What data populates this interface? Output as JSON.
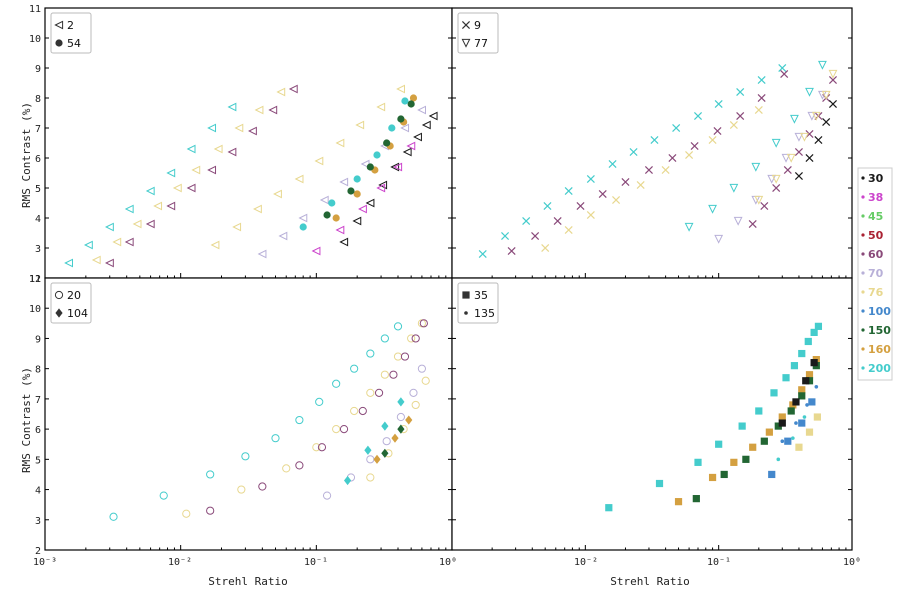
{
  "chart_data": {
    "type": "scatter",
    "xscale": "log",
    "xlim": [
      0.001,
      1
    ],
    "ylim": [
      2,
      11
    ],
    "xlabel": "Strehl Ratio",
    "ylabel": "RMS Contrast (%)",
    "y_tick_labels": [
      "3",
      "4",
      "5",
      "6",
      "7",
      "8",
      "9",
      "10",
      "11",
      "12",
      "2"
    ],
    "x_tick_labels": [
      "10⁻³",
      "10⁻²",
      "10⁻¹",
      "10⁰",
      "10⁻²",
      "10⁻¹",
      "10⁰"
    ],
    "color_legend": [
      {
        "label": "30",
        "color": "#1a1a1a"
      },
      {
        "label": "38",
        "color": "#cc44cc"
      },
      {
        "label": "45",
        "color": "#66cc66"
      },
      {
        "label": "50",
        "color": "#aa2233"
      },
      {
        "label": "60",
        "color": "#8a4a7a"
      },
      {
        "label": "70",
        "color": "#b8b0d8"
      },
      {
        "label": "76",
        "color": "#e8d890"
      },
      {
        "label": "100",
        "color": "#4488cc"
      },
      {
        "label": "150",
        "color": "#226633"
      },
      {
        "label": "160",
        "color": "#d4a040"
      },
      {
        "label": "200",
        "color": "#44cccc"
      }
    ],
    "panels": [
      {
        "id": "top-left",
        "legend": [
          {
            "marker": "tri-left",
            "label": "2"
          },
          {
            "marker": "filled-circle",
            "label": "54"
          }
        ],
        "series": [
          {
            "color": "#44cccc",
            "marker": "tri-left",
            "x": [
              0.0015,
              0.0021,
              0.003,
              0.0042,
              0.006,
              0.0085,
              0.012,
              0.017,
              0.024
            ],
            "y": [
              2.5,
              3.1,
              3.7,
              4.3,
              4.9,
              5.5,
              6.3,
              7.0,
              7.7
            ]
          },
          {
            "color": "#e8d890",
            "marker": "tri-left",
            "x": [
              0.0024,
              0.0034,
              0.0048,
              0.0068,
              0.0095,
              0.013,
              0.019,
              0.027,
              0.038,
              0.055
            ],
            "y": [
              2.6,
              3.2,
              3.8,
              4.4,
              5.0,
              5.6,
              6.3,
              7.0,
              7.6,
              8.2
            ]
          },
          {
            "color": "#8a4a7a",
            "marker": "tri-left",
            "x": [
              0.003,
              0.0042,
              0.006,
              0.0085,
              0.012,
              0.017,
              0.024,
              0.034,
              0.048,
              0.068
            ],
            "y": [
              2.5,
              3.2,
              3.8,
              4.4,
              5.0,
              5.6,
              6.2,
              6.9,
              7.6,
              8.3
            ]
          },
          {
            "color": "#e8d890",
            "marker": "tri-left",
            "x": [
              0.018,
              0.026,
              0.037,
              0.052,
              0.075,
              0.105,
              0.15,
              0.21,
              0.3,
              0.42
            ],
            "y": [
              3.1,
              3.7,
              4.3,
              4.8,
              5.3,
              5.9,
              6.5,
              7.1,
              7.7,
              8.3
            ]
          },
          {
            "color": "#b8b0d8",
            "marker": "tri-left",
            "x": [
              0.04,
              0.057,
              0.08,
              0.115,
              0.16,
              0.23,
              0.32,
              0.45,
              0.6
            ],
            "y": [
              2.8,
              3.4,
              4.0,
              4.6,
              5.2,
              5.8,
              6.4,
              7.0,
              7.6
            ]
          },
          {
            "color": "#1a1a1a",
            "marker": "tri-left",
            "x": [
              0.16,
              0.2,
              0.25,
              0.31,
              0.38,
              0.47,
              0.56,
              0.65,
              0.73
            ],
            "y": [
              3.2,
              3.9,
              4.5,
              5.1,
              5.7,
              6.2,
              6.7,
              7.1,
              7.4
            ]
          },
          {
            "color": "#44cccc",
            "marker": "filled-circle",
            "x": [
              0.08,
              0.13,
              0.2,
              0.28,
              0.36,
              0.45
            ],
            "y": [
              3.7,
              4.5,
              5.3,
              6.1,
              7.0,
              7.9
            ]
          },
          {
            "color": "#d4a040",
            "marker": "filled-circle",
            "x": [
              0.14,
              0.2,
              0.27,
              0.35,
              0.44,
              0.52
            ],
            "y": [
              4.0,
              4.8,
              5.6,
              6.4,
              7.2,
              8.0
            ]
          },
          {
            "color": "#226633",
            "marker": "filled-circle",
            "x": [
              0.12,
              0.18,
              0.25,
              0.33,
              0.42,
              0.5
            ],
            "y": [
              4.1,
              4.9,
              5.7,
              6.5,
              7.3,
              7.8
            ]
          },
          {
            "color": "#cc44cc",
            "marker": "tri-left",
            "x": [
              0.1,
              0.15,
              0.22,
              0.3,
              0.4,
              0.5
            ],
            "y": [
              2.9,
              3.6,
              4.3,
              5.0,
              5.7,
              6.4
            ]
          }
        ]
      },
      {
        "id": "top-right",
        "legend": [
          {
            "marker": "x",
            "label": "9"
          },
          {
            "marker": "tri-down",
            "label": "77"
          }
        ],
        "series": [
          {
            "color": "#44cccc",
            "marker": "x",
            "x": [
              0.0017,
              0.0025,
              0.0036,
              0.0052,
              0.0075,
              0.011,
              0.016,
              0.023,
              0.033,
              0.048,
              0.07,
              0.1,
              0.145,
              0.21,
              0.3
            ],
            "y": [
              2.8,
              3.4,
              3.9,
              4.4,
              4.9,
              5.3,
              5.8,
              6.2,
              6.6,
              7.0,
              7.4,
              7.8,
              8.2,
              8.6,
              9.0
            ]
          },
          {
            "color": "#8a4a7a",
            "marker": "x",
            "x": [
              0.0028,
              0.0042,
              0.0062,
              0.0092,
              0.0135,
              0.02,
              0.03,
              0.045,
              0.066,
              0.098,
              0.145,
              0.21,
              0.31
            ],
            "y": [
              2.9,
              3.4,
              3.9,
              4.4,
              4.8,
              5.2,
              5.6,
              6.0,
              6.4,
              6.9,
              7.4,
              8.0,
              8.8
            ]
          },
          {
            "color": "#e8d890",
            "marker": "x",
            "x": [
              0.005,
              0.0075,
              0.011,
              0.017,
              0.026,
              0.04,
              0.06,
              0.09,
              0.13,
              0.2
            ],
            "y": [
              3.0,
              3.6,
              4.1,
              4.6,
              5.1,
              5.6,
              6.1,
              6.6,
              7.1,
              7.6
            ]
          },
          {
            "color": "#8a4a7a",
            "marker": "x",
            "x": [
              0.18,
              0.22,
              0.27,
              0.33,
              0.4,
              0.48,
              0.56,
              0.64,
              0.72
            ],
            "y": [
              3.8,
              4.4,
              5.0,
              5.6,
              6.2,
              6.8,
              7.4,
              8.0,
              8.6
            ]
          },
          {
            "color": "#b8b0d8",
            "marker": "tri-down",
            "x": [
              0.1,
              0.14,
              0.19,
              0.25,
              0.32,
              0.4,
              0.5,
              0.6
            ],
            "y": [
              3.3,
              3.9,
              4.6,
              5.3,
              6.0,
              6.7,
              7.4,
              8.1
            ]
          },
          {
            "color": "#e8d890",
            "marker": "tri-down",
            "x": [
              0.2,
              0.27,
              0.35,
              0.44,
              0.54,
              0.64,
              0.72
            ],
            "y": [
              4.6,
              5.3,
              6.0,
              6.7,
              7.4,
              8.1,
              8.8
            ]
          },
          {
            "color": "#44cccc",
            "marker": "tri-down",
            "x": [
              0.06,
              0.09,
              0.13,
              0.19,
              0.27,
              0.37,
              0.48,
              0.6
            ],
            "y": [
              3.7,
              4.3,
              5.0,
              5.7,
              6.5,
              7.3,
              8.2,
              9.1
            ]
          },
          {
            "color": "#1a1a1a",
            "marker": "x",
            "x": [
              0.4,
              0.48,
              0.56,
              0.64,
              0.72
            ],
            "y": [
              5.4,
              6.0,
              6.6,
              7.2,
              7.8
            ]
          }
        ]
      },
      {
        "id": "bottom-left",
        "legend": [
          {
            "marker": "open-circle",
            "label": "20"
          },
          {
            "marker": "filled-diamond",
            "label": "104"
          }
        ],
        "series": [
          {
            "color": "#44cccc",
            "marker": "open-circle",
            "x": [
              0.0032,
              0.0075,
              0.0165,
              0.03,
              0.05,
              0.075,
              0.105,
              0.14,
              0.19,
              0.25,
              0.32,
              0.4
            ],
            "y": [
              3.1,
              3.8,
              4.5,
              5.1,
              5.7,
              6.3,
              6.9,
              7.5,
              8.0,
              8.5,
              9.0,
              9.4
            ]
          },
          {
            "color": "#e8d890",
            "marker": "open-circle",
            "x": [
              0.011,
              0.028,
              0.06,
              0.1,
              0.14,
              0.19,
              0.25,
              0.32,
              0.4,
              0.5,
              0.6
            ],
            "y": [
              3.2,
              4.0,
              4.7,
              5.4,
              6.0,
              6.6,
              7.2,
              7.8,
              8.4,
              9.0,
              9.5
            ]
          },
          {
            "color": "#8a4a7a",
            "marker": "open-circle",
            "x": [
              0.0165,
              0.04,
              0.075,
              0.11,
              0.16,
              0.22,
              0.29,
              0.37,
              0.45,
              0.54,
              0.62
            ],
            "y": [
              3.3,
              4.1,
              4.8,
              5.4,
              6.0,
              6.6,
              7.2,
              7.8,
              8.4,
              9.0,
              9.5
            ]
          },
          {
            "color": "#b8b0d8",
            "marker": "open-circle",
            "x": [
              0.12,
              0.18,
              0.25,
              0.33,
              0.42,
              0.52,
              0.6
            ],
            "y": [
              3.8,
              4.4,
              5.0,
              5.6,
              6.4,
              7.2,
              8.0
            ]
          },
          {
            "color": "#e8d890",
            "marker": "open-circle",
            "x": [
              0.25,
              0.34,
              0.44,
              0.54,
              0.64
            ],
            "y": [
              4.4,
              5.2,
              6.0,
              6.8,
              7.6
            ]
          },
          {
            "color": "#44cccc",
            "marker": "filled-diamond",
            "x": [
              0.17,
              0.24,
              0.32,
              0.42
            ],
            "y": [
              4.3,
              5.3,
              6.1,
              6.9
            ]
          },
          {
            "color": "#d4a040",
            "marker": "filled-diamond",
            "x": [
              0.28,
              0.38,
              0.48
            ],
            "y": [
              5.0,
              5.7,
              6.3
            ]
          },
          {
            "color": "#226633",
            "marker": "filled-diamond",
            "x": [
              0.32,
              0.42
            ],
            "y": [
              5.2,
              6.0
            ]
          }
        ]
      },
      {
        "id": "bottom-right",
        "legend": [
          {
            "marker": "filled-square",
            "label": "35"
          },
          {
            "marker": "dot",
            "label": "135"
          }
        ],
        "series": [
          {
            "color": "#44cccc",
            "marker": "filled-square",
            "x": [
              0.015,
              0.036,
              0.07,
              0.1,
              0.15,
              0.2,
              0.26,
              0.32,
              0.37,
              0.42,
              0.47,
              0.52,
              0.56
            ],
            "y": [
              3.4,
              4.2,
              4.9,
              5.5,
              6.1,
              6.6,
              7.2,
              7.7,
              8.1,
              8.5,
              8.9,
              9.2,
              9.4
            ]
          },
          {
            "color": "#d4a040",
            "marker": "filled-square",
            "x": [
              0.05,
              0.09,
              0.13,
              0.18,
              0.24,
              0.3,
              0.36,
              0.42,
              0.48,
              0.54
            ],
            "y": [
              3.6,
              4.4,
              4.9,
              5.4,
              5.9,
              6.4,
              6.8,
              7.3,
              7.8,
              8.3
            ]
          },
          {
            "color": "#226633",
            "marker": "filled-square",
            "x": [
              0.068,
              0.11,
              0.16,
              0.22,
              0.28,
              0.35,
              0.42,
              0.48,
              0.54
            ],
            "y": [
              3.7,
              4.5,
              5.0,
              5.6,
              6.1,
              6.6,
              7.1,
              7.6,
              8.1
            ]
          },
          {
            "color": "#1a1a1a",
            "marker": "filled-square",
            "x": [
              0.3,
              0.38,
              0.45,
              0.52
            ],
            "y": [
              6.2,
              6.9,
              7.6,
              8.2
            ]
          },
          {
            "color": "#4488cc",
            "marker": "filled-square",
            "x": [
              0.25,
              0.33,
              0.42,
              0.5
            ],
            "y": [
              4.5,
              5.6,
              6.2,
              6.9
            ]
          },
          {
            "color": "#e8d890",
            "marker": "filled-square",
            "x": [
              0.4,
              0.48,
              0.55
            ],
            "y": [
              5.4,
              5.9,
              6.4
            ]
          },
          {
            "color": "#4488cc",
            "marker": "dot",
            "x": [
              0.3,
              0.38,
              0.46,
              0.54
            ],
            "y": [
              5.6,
              6.2,
              6.8,
              7.4
            ]
          },
          {
            "color": "#44cccc",
            "marker": "dot",
            "x": [
              0.28,
              0.36,
              0.44
            ],
            "y": [
              5.0,
              5.7,
              6.4
            ]
          }
        ]
      }
    ]
  }
}
